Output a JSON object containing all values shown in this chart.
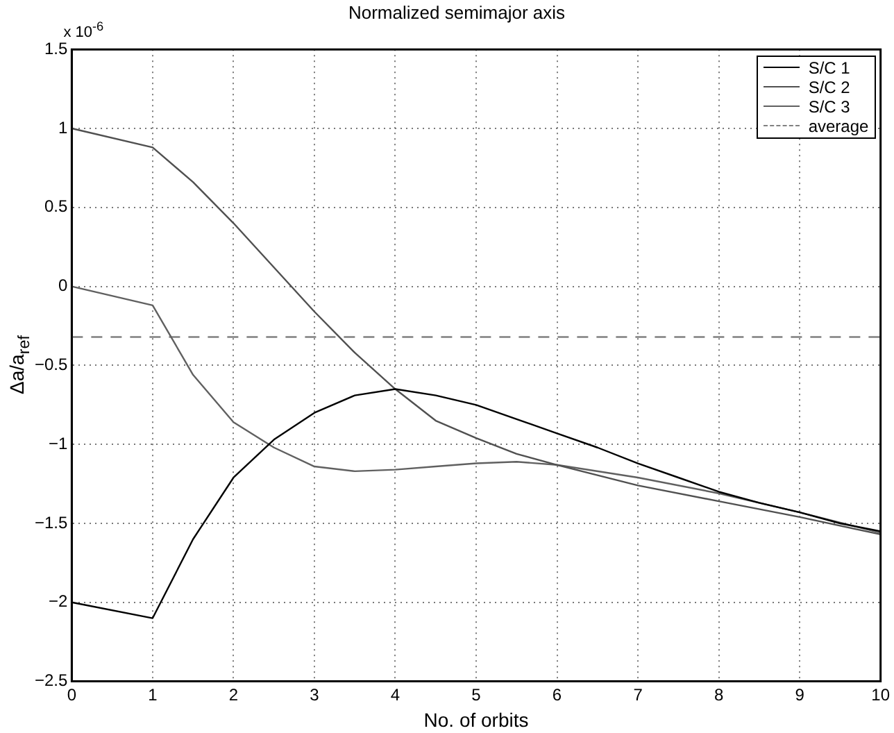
{
  "chart_data": {
    "type": "line",
    "title": "Normalized semimajor axis",
    "xlabel": "No. of orbits",
    "ylabel": "Δa/a$_{ref}$",
    "annotations": [
      "x 10$^{-6}$"
    ],
    "series": [
      {
        "name": "S/C 1",
        "color": "#000000",
        "x": [
          0,
          1,
          1.5,
          2,
          2.5,
          3,
          3.5,
          4,
          4.5,
          5,
          5.5,
          6,
          6.5,
          7,
          7.5,
          8,
          8.5,
          9,
          9.5,
          10
        ],
        "values": [
          -2,
          -2.1,
          -1.6,
          -1.21,
          -0.97,
          -0.8,
          -0.69,
          -0.65,
          -0.69,
          -0.75,
          -0.84,
          -0.93,
          -1.02,
          -1.12,
          -1.21,
          -1.3,
          -1.37,
          -1.43,
          -1.5,
          -1.55
        ]
      },
      {
        "name": "S/C 2",
        "color": "#505050",
        "x": [
          0,
          1,
          1.5,
          2,
          2.5,
          3,
          3.5,
          4,
          4.5,
          5,
          5.5,
          6,
          7,
          8,
          9,
          10
        ],
        "values": [
          1,
          0.88,
          0.66,
          0.4,
          0.12,
          -0.16,
          -0.42,
          -0.65,
          -0.85,
          -0.96,
          -1.06,
          -1.13,
          -1.26,
          -1.36,
          -1.46,
          -1.57
        ]
      },
      {
        "name": "S/C 3",
        "color": "#606060",
        "x": [
          0,
          1,
          1.5,
          2,
          2.5,
          3,
          3.5,
          4,
          4.5,
          5,
          5.5,
          6,
          7,
          8,
          9,
          10
        ],
        "values": [
          0,
          -0.12,
          -0.56,
          -0.86,
          -1.02,
          -1.14,
          -1.17,
          -1.16,
          -1.14,
          -1.12,
          -1.11,
          -1.13,
          -1.21,
          -1.31,
          -1.43,
          -1.56
        ]
      },
      {
        "name": "average",
        "color": "#808080",
        "line_style": "dashed",
        "x": [
          0,
          10
        ],
        "values": [
          -0.32,
          -0.32
        ]
      }
    ],
    "xlim": [
      0,
      10
    ],
    "xticks": [
      0,
      1,
      2,
      3,
      4,
      5,
      6,
      7,
      8,
      9,
      10
    ],
    "ylim": [
      -2.5,
      1.5
    ],
    "yticks": [
      -2.5,
      -2,
      -1.5,
      -1,
      -0.5,
      0,
      0.5,
      1,
      1.5
    ],
    "grid": true,
    "legend": "top right",
    "marker": "none",
    "line_style": "solid"
  }
}
